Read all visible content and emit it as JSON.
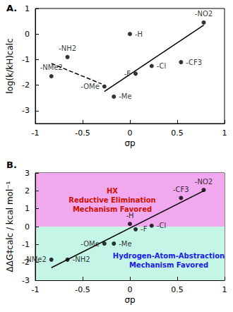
{
  "chart_data": [
    {
      "type": "scatter",
      "title": "A.",
      "x_label": "σp",
      "y_label": "log(k/kH)calc",
      "xlim": [
        -1,
        1
      ],
      "xticks": [
        -1,
        -0.5,
        0,
        0.5,
        1
      ],
      "ylim": [
        -3.5,
        1
      ],
      "yticks": [
        -3,
        -2,
        -1,
        0,
        1
      ],
      "color": "#000000",
      "marker": "circle",
      "labels": [
        "-NMe2",
        "-NH2",
        "-OMe",
        "-Me",
        "-H",
        "-F",
        "-Cl",
        "-CF3",
        "-NO2"
      ],
      "x": [
        -0.83,
        -0.66,
        -0.27,
        -0.17,
        0,
        0.06,
        0.23,
        0.54,
        0.78
      ],
      "values": [
        -1.65,
        -0.9,
        -2.05,
        -2.45,
        0,
        -1.55,
        -1.25,
        -1.1,
        0.45
      ],
      "fit_lines": [
        {
          "x": [
            -0.27,
            0.78
          ],
          "values": [
            -2.25,
            0.35
          ],
          "line_style": "solid"
        },
        {
          "x": [
            -0.83,
            -0.3
          ],
          "values": [
            -1.15,
            -1.95
          ],
          "line_style": "dashed"
        }
      ]
    },
    {
      "type": "scatter",
      "title": "B.",
      "x_label": "σp",
      "y_label": "ΔΔG‡calc / kcal mol⁻¹",
      "xlim": [
        -1,
        1
      ],
      "xticks": [
        -1,
        -0.5,
        0,
        0.5,
        1
      ],
      "ylim": [
        -3,
        3
      ],
      "yticks": [
        -3,
        -2,
        -1,
        0,
        1,
        2,
        3
      ],
      "color": "#000000",
      "marker": "circle",
      "labels": [
        "-NMe2",
        "-NH2",
        "-OMe",
        "-Me",
        "-H",
        "-F",
        "-Cl",
        "-CF3",
        "-NO2"
      ],
      "x": [
        -0.83,
        -0.66,
        -0.27,
        -0.17,
        0,
        0.06,
        0.23,
        0.54,
        0.78
      ],
      "values": [
        -1.85,
        -1.85,
        -0.95,
        -0.95,
        0.15,
        -0.15,
        0.05,
        1.6,
        2.05
      ],
      "fit_lines": [
        {
          "x": [
            -0.83,
            0.78
          ],
          "values": [
            -2.3,
            2.0
          ],
          "line_style": "solid"
        }
      ],
      "regions": [
        {
          "ylim": [
            0,
            3
          ],
          "color": "#f2a8ef",
          "label": "HX\nReductive Elimination\nMechanism Favored"
        },
        {
          "ylim": [
            -3,
            0
          ],
          "color": "#c4f5e6",
          "label": "Hydrogen-Atom-Abstraction\nMechanism Favored"
        }
      ]
    }
  ]
}
